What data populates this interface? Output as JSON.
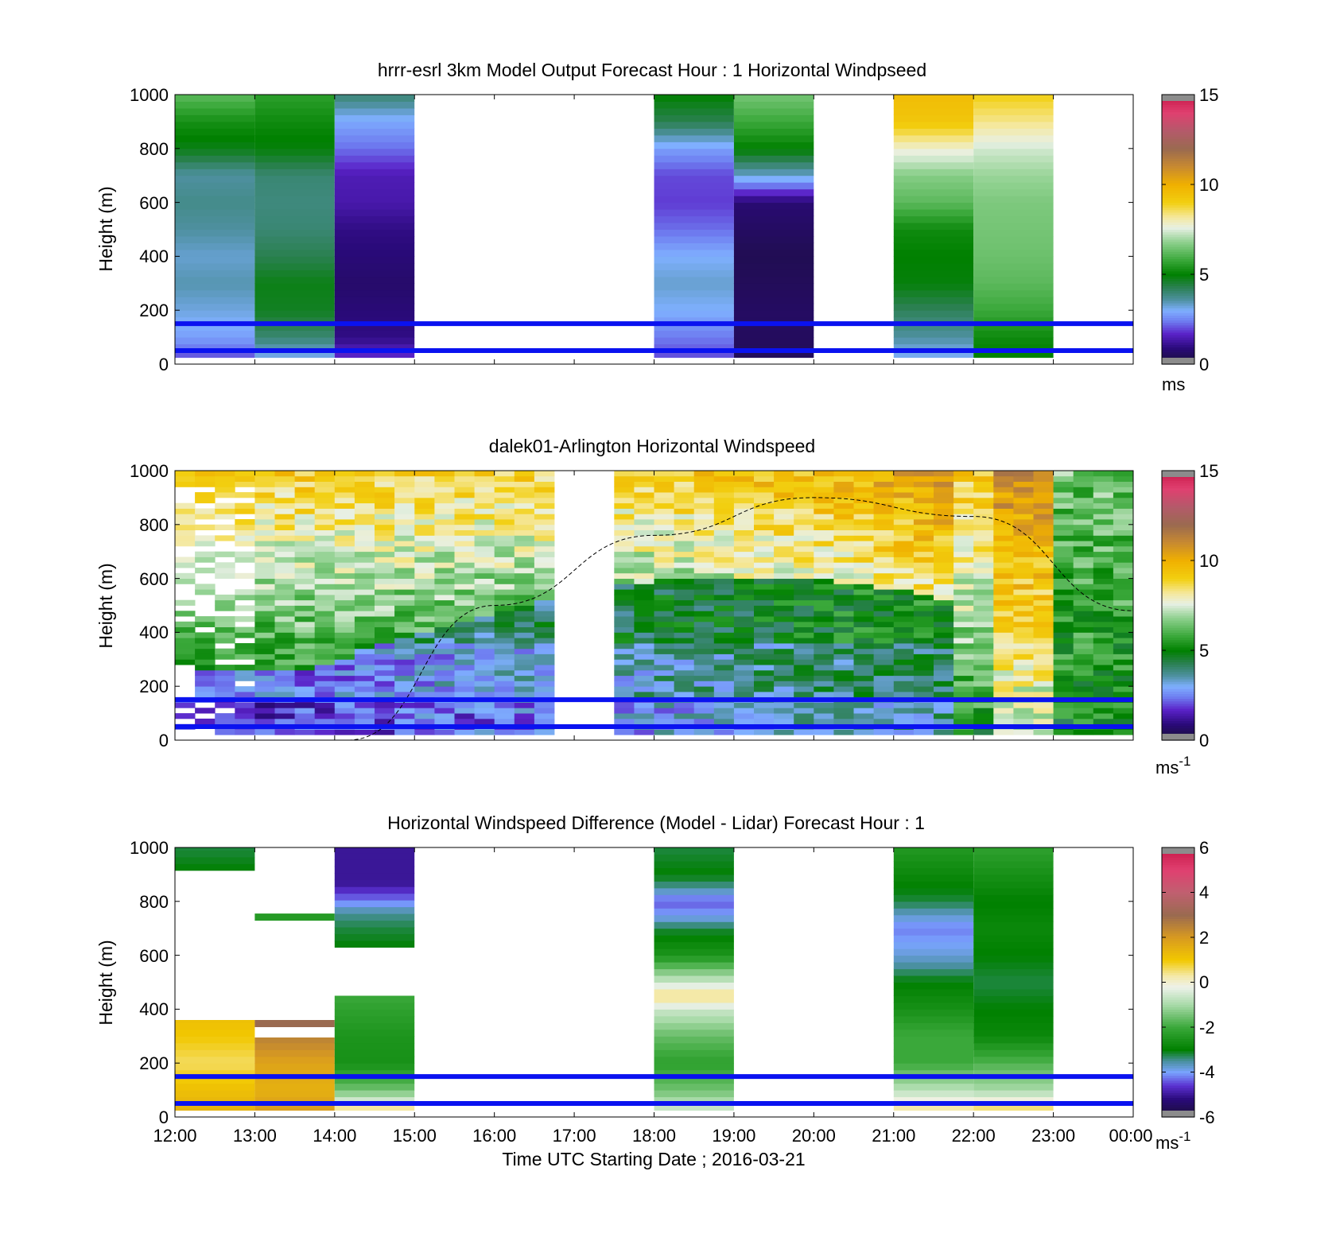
{
  "figure": {
    "xlabel": "Time UTC  Starting Date ; 2016-03-21",
    "xticks": [
      "12:00",
      "13:00",
      "14:00",
      "15:00",
      "16:00",
      "17:00",
      "18:00",
      "19:00",
      "20:00",
      "21:00",
      "22:00",
      "23:00",
      "00:00"
    ]
  },
  "chart_data": [
    {
      "type": "heatmap",
      "title": "hrrr-esrl 3km Model Output   Forecast Hour : 1 Horizontal Windpseed",
      "ylabel": "Height (m)",
      "ylim": [
        0,
        1000
      ],
      "yticks": [
        "0",
        "200",
        "400",
        "600",
        "800",
        "1000"
      ],
      "xlim": [
        "12:00",
        "00:00"
      ],
      "colorbar": {
        "min": 0,
        "max": 15,
        "ticks": [
          "0",
          "5",
          "10",
          "15"
        ],
        "unit": "ms",
        "unit_sup": "",
        "palette": "windspeed"
      },
      "reference_lines_m": [
        150,
        50
      ],
      "columns": [
        {
          "start": "12:00",
          "end": "13:00",
          "bottom": 25,
          "top": 1000,
          "profile": [
            [
              25,
              2.0
            ],
            [
              60,
              2.4
            ],
            [
              100,
              2.8
            ],
            [
              200,
              3.2
            ],
            [
              300,
              3.5
            ],
            [
              400,
              3.3
            ],
            [
              500,
              3.6
            ],
            [
              600,
              3.8
            ],
            [
              700,
              3.6
            ],
            [
              800,
              4.8
            ],
            [
              900,
              5.3
            ],
            [
              1000,
              6.2
            ]
          ]
        },
        {
          "start": "13:00",
          "end": "14:00",
          "bottom": 25,
          "top": 1000,
          "profile": [
            [
              25,
              3.0
            ],
            [
              60,
              3.5
            ],
            [
              100,
              4.0
            ],
            [
              200,
              4.7
            ],
            [
              300,
              4.8
            ],
            [
              400,
              4.3
            ],
            [
              500,
              4.0
            ],
            [
              600,
              3.9
            ],
            [
              700,
              4.0
            ],
            [
              800,
              4.9
            ],
            [
              900,
              5.2
            ],
            [
              1000,
              5.6
            ]
          ]
        },
        {
          "start": "14:00",
          "end": "15:00",
          "bottom": 25,
          "top": 1000,
          "profile": [
            [
              25,
              1.8
            ],
            [
              100,
              1.0
            ],
            [
              300,
              0.7
            ],
            [
              500,
              1.0
            ],
            [
              600,
              1.4
            ],
            [
              700,
              1.5
            ],
            [
              800,
              2.3
            ],
            [
              900,
              2.9
            ],
            [
              1000,
              4.0
            ]
          ]
        },
        {
          "start": "18:00",
          "end": "19:00",
          "bottom": 25,
          "top": 1000,
          "profile": [
            [
              25,
              2.0
            ],
            [
              100,
              2.4
            ],
            [
              200,
              3.0
            ],
            [
              300,
              3.3
            ],
            [
              400,
              3.0
            ],
            [
              500,
              2.3
            ],
            [
              600,
              1.9
            ],
            [
              700,
              2.0
            ],
            [
              800,
              2.8
            ],
            [
              900,
              4.3
            ],
            [
              1000,
              5.0
            ]
          ]
        },
        {
          "start": "19:00",
          "end": "20:00",
          "bottom": 25,
          "top": 1000,
          "profile": [
            [
              25,
              0.5
            ],
            [
              200,
              0.6
            ],
            [
              400,
              0.4
            ],
            [
              600,
              0.8
            ],
            [
              700,
              3.3
            ],
            [
              800,
              5.0
            ],
            [
              900,
              5.8
            ],
            [
              1000,
              6.5
            ]
          ]
        },
        {
          "start": "21:00",
          "end": "22:00",
          "bottom": 25,
          "top": 1000,
          "profile": [
            [
              25,
              3.0
            ],
            [
              100,
              3.6
            ],
            [
              200,
              4.2
            ],
            [
              300,
              4.9
            ],
            [
              400,
              5.0
            ],
            [
              500,
              5.2
            ],
            [
              600,
              6.2
            ],
            [
              700,
              6.7
            ],
            [
              800,
              7.8
            ],
            [
              900,
              9.3
            ],
            [
              1000,
              9.6
            ]
          ]
        },
        {
          "start": "22:00",
          "end": "23:00",
          "bottom": 25,
          "top": 1000,
          "profile": [
            [
              25,
              5.0
            ],
            [
              100,
              5.2
            ],
            [
              200,
              5.8
            ],
            [
              300,
              6.2
            ],
            [
              400,
              6.4
            ],
            [
              500,
              6.5
            ],
            [
              600,
              6.6
            ],
            [
              700,
              6.9
            ],
            [
              800,
              7.4
            ],
            [
              900,
              8.3
            ],
            [
              1000,
              9.0
            ]
          ]
        }
      ]
    },
    {
      "type": "heatmap",
      "title": "dalek01-Arlington  Horizontal Windspeed",
      "ylabel": "Height (m)",
      "ylim": [
        0,
        1000
      ],
      "yticks": [
        "0",
        "200",
        "400",
        "600",
        "800",
        "1000"
      ],
      "xlim": [
        "12:00",
        "00:00"
      ],
      "colorbar": {
        "min": 0,
        "max": 15,
        "ticks": [
          "0",
          "5",
          "10",
          "15"
        ],
        "unit": "ms",
        "unit_sup": "-1",
        "palette": "windspeed"
      },
      "reference_lines_m": [
        150,
        50
      ],
      "overlay_curve": {
        "style": "dashed",
        "points": [
          [
            "14:10",
            0
          ],
          [
            "16:00",
            500
          ],
          [
            "18:00",
            760
          ],
          [
            "20:00",
            900
          ],
          [
            "22:00",
            830
          ],
          [
            "00:00",
            480
          ]
        ]
      },
      "observations": {
        "column_minutes": 15,
        "missing_intervals": [
          [
            "16:45",
            "17:00"
          ],
          [
            "17:00",
            "17:30"
          ]
        ]
      }
    },
    {
      "type": "heatmap",
      "title": "Horizontal Windspeed Difference (Model - Lidar) Forecast Hour : 1",
      "ylabel": "Height (m)",
      "ylim": [
        0,
        1000
      ],
      "yticks": [
        "0",
        "200",
        "400",
        "600",
        "800",
        "1000"
      ],
      "xlim": [
        "12:00",
        "00:00"
      ],
      "colorbar": {
        "min": -6,
        "max": 6,
        "ticks": [
          "-6",
          "-4",
          "-2",
          "0",
          "2",
          "4",
          "6"
        ],
        "unit": "ms",
        "unit_sup": "-1",
        "palette": "difference"
      },
      "reference_lines_m": [
        150,
        50
      ],
      "columns": [
        {
          "start": "12:00",
          "end": "13:00",
          "bottom": 25,
          "top": 360,
          "profile": [
            [
              25,
              1.5
            ],
            [
              100,
              1.2
            ],
            [
              200,
              0.6
            ],
            [
              300,
              1.0
            ],
            [
              360,
              1.2
            ]
          ]
        },
        {
          "start": "12:00",
          "end": "13:00",
          "bottom": 915,
          "top": 1000,
          "profile": [
            [
              915,
              -3.0
            ],
            [
              1000,
              -3.2
            ]
          ]
        },
        {
          "start": "13:00",
          "end": "14:00",
          "bottom": 25,
          "top": 295,
          "profile": [
            [
              25,
              2.0
            ],
            [
              100,
              1.5
            ],
            [
              200,
              1.8
            ],
            [
              295,
              2.5
            ]
          ]
        },
        {
          "start": "13:00",
          "end": "14:00",
          "bottom": 335,
          "top": 360,
          "profile": [
            [
              335,
              3.0
            ],
            [
              360,
              3.0
            ]
          ]
        },
        {
          "start": "13:00",
          "end": "14:00",
          "bottom": 730,
          "top": 755,
          "profile": [
            [
              730,
              -2.5
            ],
            [
              755,
              -2.2
            ]
          ]
        },
        {
          "start": "14:00",
          "end": "15:00",
          "bottom": 25,
          "top": 450,
          "profile": [
            [
              25,
              0.8
            ],
            [
              60,
              -0.5
            ],
            [
              100,
              -1.5
            ],
            [
              200,
              -2.6
            ],
            [
              300,
              -2.5
            ],
            [
              400,
              -2.2
            ],
            [
              450,
              -2.0
            ]
          ]
        },
        {
          "start": "14:00",
          "end": "15:00",
          "bottom": 630,
          "top": 1000,
          "profile": [
            [
              630,
              -3.0
            ],
            [
              700,
              -3.2
            ],
            [
              760,
              -3.5
            ],
            [
              800,
              -4.2
            ],
            [
              870,
              -5.0
            ],
            [
              1000,
              -5.0
            ]
          ]
        },
        {
          "start": "18:00",
          "end": "19:00",
          "bottom": 25,
          "top": 1000,
          "profile": [
            [
              25,
              -0.5
            ],
            [
              100,
              -1.5
            ],
            [
              200,
              -2.2
            ],
            [
              300,
              -1.6
            ],
            [
              400,
              -0.6
            ],
            [
              450,
              0.6
            ],
            [
              500,
              -0.6
            ],
            [
              600,
              -2.5
            ],
            [
              700,
              -3.2
            ],
            [
              750,
              -4.0
            ],
            [
              800,
              -4.4
            ],
            [
              850,
              -3.5
            ],
            [
              900,
              -3.0
            ],
            [
              1000,
              -3.2
            ]
          ]
        },
        {
          "start": "21:00",
          "end": "22:00",
          "bottom": 25,
          "top": 1000,
          "profile": [
            [
              25,
              0.5
            ],
            [
              100,
              -0.8
            ],
            [
              200,
              -2.0
            ],
            [
              300,
              -2.0
            ],
            [
              400,
              -2.6
            ],
            [
              500,
              -3.0
            ],
            [
              600,
              -3.8
            ],
            [
              700,
              -4.2
            ],
            [
              800,
              -3.2
            ],
            [
              900,
              -2.8
            ],
            [
              1000,
              -2.4
            ]
          ]
        },
        {
          "start": "22:00",
          "end": "23:00",
          "bottom": 25,
          "top": 1000,
          "profile": [
            [
              25,
              0.8
            ],
            [
              100,
              -1.0
            ],
            [
              200,
              -1.8
            ],
            [
              300,
              -2.8
            ],
            [
              400,
              -3.0
            ],
            [
              500,
              -3.2
            ],
            [
              600,
              -3.0
            ],
            [
              700,
              -2.8
            ],
            [
              800,
              -3.0
            ],
            [
              900,
              -2.6
            ],
            [
              1000,
              -2.2
            ]
          ]
        }
      ]
    }
  ]
}
